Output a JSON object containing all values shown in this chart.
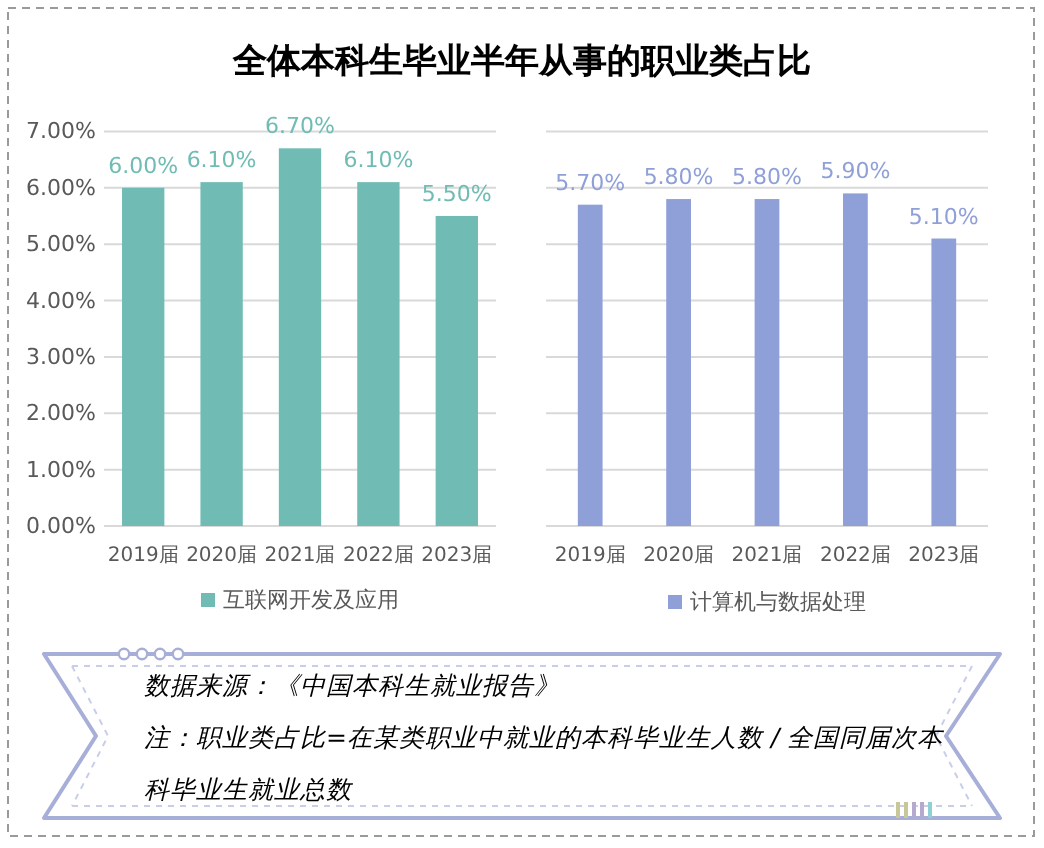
{
  "chart_data": [
    {
      "type": "bar",
      "title": "全体本科生毕业半年从事的职业类占比",
      "categories": [
        "2019届",
        "2020届",
        "2021届",
        "2022届",
        "2023届"
      ],
      "series": [
        {
          "name": "互联网开发及应用",
          "color": "#70bcb4",
          "values": [
            6.0,
            6.1,
            6.7,
            6.1,
            5.5
          ],
          "value_labels": [
            "6.00%",
            "6.10%",
            "6.70%",
            "6.10%",
            "5.50%"
          ]
        }
      ],
      "ylim": [
        0,
        7
      ],
      "yticks": [
        {
          "value": 0,
          "label": "0.00%"
        },
        {
          "value": 1,
          "label": "1.00%"
        },
        {
          "value": 2,
          "label": "2.00%"
        },
        {
          "value": 3,
          "label": "3.00%"
        },
        {
          "value": 4,
          "label": "4.00%"
        },
        {
          "value": 5,
          "label": "5.00%"
        },
        {
          "value": 6,
          "label": "6.00%"
        },
        {
          "value": 7,
          "label": "7.00%"
        }
      ],
      "grid": "y",
      "legend": "bottom",
      "annotations": [
        "数据来源：《中国本科生就业报告》",
        "注：职业类占比=在某类职业中就业的本科毕业生人数 / 全国同届次本科毕业生就业总数"
      ]
    },
    {
      "type": "bar",
      "categories": [
        "2019届",
        "2020届",
        "2021届",
        "2022届",
        "2023届"
      ],
      "series": [
        {
          "name": "计算机与数据处理",
          "color": "#8fa0d8",
          "values": [
            5.7,
            5.8,
            5.8,
            5.9,
            5.1
          ],
          "value_labels": [
            "5.70%",
            "5.80%",
            "5.80%",
            "5.90%",
            "5.10%"
          ]
        }
      ],
      "ylim": [
        0,
        7
      ],
      "yticks": [
        0,
        1,
        2,
        3,
        4,
        5,
        6,
        7
      ],
      "tick_labels": "x",
      "grid": "y",
      "legend": "bottom"
    }
  ]
}
